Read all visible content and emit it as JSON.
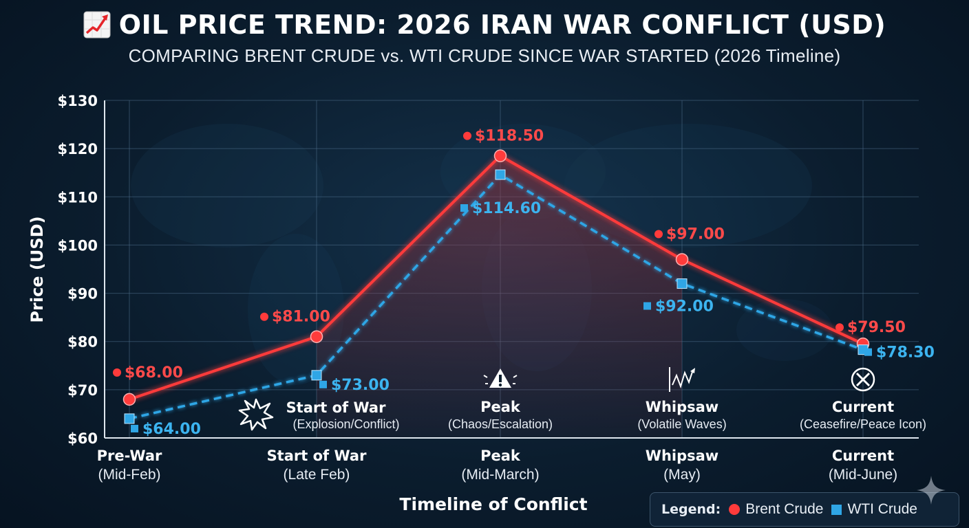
{
  "header": {
    "title": "OIL PRICE TREND: 2026 IRAN WAR CONFLICT (USD)",
    "subtitle": "COMPARING BRENT CRUDE vs. WTI CRUDE SINCE WAR STARTED (2026 Timeline)",
    "title_icon": "chart-increasing-icon"
  },
  "legend": {
    "label": "Legend:",
    "brent": "Brent Crude",
    "wti": "WTI Crude"
  },
  "chart_data": {
    "type": "line",
    "title": "OIL PRICE TREND: 2026 IRAN WAR CONFLICT (USD)",
    "subtitle": "COMPARING BRENT CRUDE vs. WTI CRUDE SINCE WAR STARTED (2026 Timeline)",
    "xlabel": "Timeline of Conflict",
    "ylabel": "Price (USD)",
    "ylim": [
      60,
      130
    ],
    "yticks": [
      60,
      70,
      80,
      90,
      100,
      110,
      120,
      130
    ],
    "ytick_labels": [
      "$60",
      "$70",
      "$80",
      "$90",
      "$100",
      "$110",
      "$120",
      "$130"
    ],
    "grid": true,
    "legend_position": "bottom-right",
    "categories": [
      {
        "label": "Pre-War",
        "sub": "(Mid-Feb)"
      },
      {
        "label": "Start of War",
        "sub": "(Late Feb)"
      },
      {
        "label": "Peak",
        "sub": "(Mid-March)"
      },
      {
        "label": "Whipsaw",
        "sub": "(May)"
      },
      {
        "label": "Current",
        "sub": "(Mid-June)"
      }
    ],
    "series": [
      {
        "name": "Brent Crude",
        "color": "#ff3b3b",
        "marker": "circle",
        "style": "solid",
        "values": [
          68.0,
          81.0,
          118.5,
          97.0,
          79.5
        ],
        "labels": [
          "$68.00",
          "$81.00",
          "$118.50",
          "$97.00",
          "$79.50"
        ]
      },
      {
        "name": "WTI Crude",
        "color": "#2fa6e6",
        "marker": "square",
        "style": "dashed",
        "values": [
          64.0,
          73.0,
          114.6,
          92.0,
          78.3
        ],
        "labels": [
          "$64.00",
          "$73.00",
          "$114.60",
          "$92.00",
          "$78.30"
        ]
      }
    ],
    "annotations": [
      {
        "at": 1,
        "icon": "explosion-icon",
        "label": "Start of War",
        "sub": "(Explosion/Conflict)"
      },
      {
        "at": 2,
        "icon": "warning-icon",
        "label": "Peak",
        "sub": "(Chaos/Escalation)"
      },
      {
        "at": 3,
        "icon": "volatile-waves-icon",
        "label": "Whipsaw",
        "sub": "(Volatile Waves)"
      },
      {
        "at": 4,
        "icon": "ceasefire-icon",
        "label": "Current",
        "sub": "(Ceasefire/Peace Icon)"
      }
    ]
  }
}
